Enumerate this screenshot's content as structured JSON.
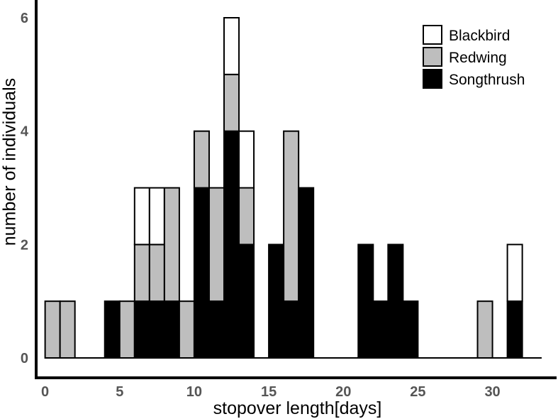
{
  "chart_data": {
    "type": "bar",
    "stacked": true,
    "xlabel": "stopover length[days]",
    "ylabel": "number of individuals",
    "xlim": [
      -0.6,
      34.3
    ],
    "ylim": [
      0,
      6.4
    ],
    "xticks": [
      0,
      5,
      10,
      15,
      20,
      25,
      30
    ],
    "yticks": [
      0,
      2,
      4,
      6
    ],
    "bin_width": 1,
    "x": [
      1,
      2,
      5,
      6,
      7,
      8,
      9,
      10,
      11,
      12,
      13,
      14,
      15,
      16,
      17,
      18,
      19,
      20,
      21,
      22,
      23,
      24,
      25,
      26,
      27,
      28,
      29,
      30,
      31,
      32,
      33
    ],
    "series": [
      {
        "name": "Songthrush",
        "color": "#000000",
        "values": [
          0,
          0,
          1,
          0,
          1,
          1,
          1,
          0,
          3,
          1,
          4,
          2,
          0,
          2,
          1,
          3,
          0,
          0,
          0,
          2,
          1,
          2,
          1,
          0,
          0,
          0,
          0,
          0,
          0,
          1,
          0
        ]
      },
      {
        "name": "Redwing",
        "color": "#bebebe",
        "values": [
          1,
          1,
          0,
          1,
          1,
          1,
          2,
          1,
          1,
          2,
          1,
          1,
          0,
          0,
          3,
          0,
          0,
          0,
          0,
          0,
          0,
          0,
          0,
          0,
          0,
          0,
          0,
          1,
          0,
          0,
          0
        ]
      },
      {
        "name": "Blackbird",
        "color": "#ffffff",
        "values": [
          0,
          0,
          0,
          0,
          1,
          1,
          0,
          0,
          0,
          0,
          1,
          1,
          0,
          0,
          0,
          0,
          0,
          0,
          0,
          0,
          0,
          0,
          0,
          0,
          0,
          0,
          0,
          0,
          0,
          1,
          0
        ]
      }
    ],
    "legend": {
      "position": "top-right",
      "order": [
        "Blackbird",
        "Redwing",
        "Songthrush"
      ]
    },
    "grid": false
  }
}
